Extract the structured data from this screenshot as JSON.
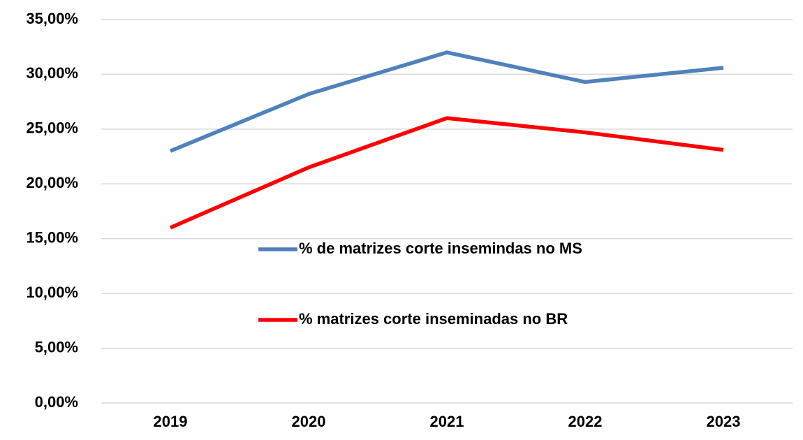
{
  "chart_data": {
    "type": "line",
    "categories": [
      "2019",
      "2020",
      "2021",
      "2022",
      "2023"
    ],
    "series": [
      {
        "name": "% de matrizes corte insemindas no MS",
        "color": "#4f81bd",
        "values": [
          23.0,
          28.2,
          32.0,
          29.3,
          30.6
        ]
      },
      {
        "name": "% matrizes corte inseminadas no BR",
        "color": "#ff0000",
        "values": [
          16.0,
          21.5,
          26.0,
          24.7,
          23.1
        ]
      }
    ],
    "ylim": [
      0,
      35
    ],
    "yticks": [
      {
        "value": 0,
        "label": "0,00%"
      },
      {
        "value": 5,
        "label": "5,00%"
      },
      {
        "value": 10,
        "label": "10,00%"
      },
      {
        "value": 15,
        "label": "15,00%"
      },
      {
        "value": 20,
        "label": "20,00%"
      },
      {
        "value": 25,
        "label": "25,00%"
      },
      {
        "value": 30,
        "label": "30,00%"
      },
      {
        "value": 35,
        "label": "35,00%"
      }
    ],
    "grid": true,
    "legend": "center"
  }
}
